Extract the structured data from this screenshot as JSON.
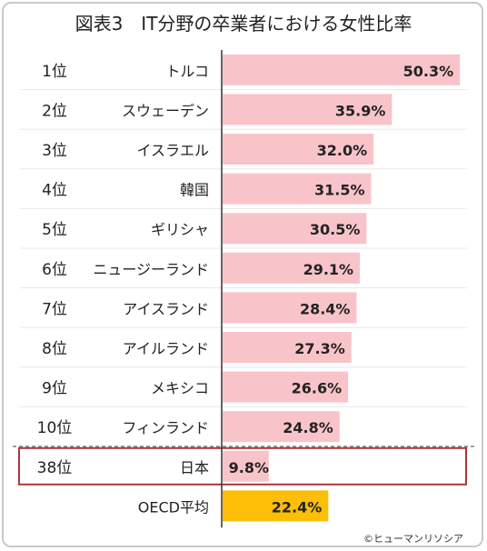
{
  "title": "図表3　IT分野の卒業者における女性比率",
  "credit": "©ヒューマンリソシア",
  "colors": {
    "bar": "#f8c4ca",
    "oecd_bar": "#fcbe06",
    "highlight_border": "#b0343b",
    "separator": "#e8e8e8",
    "axis": "#333333"
  },
  "chart_data": {
    "type": "bar",
    "orientation": "horizontal",
    "title": "図表3　IT分野の卒業者における女性比率",
    "xlim": [
      0,
      52
    ],
    "rows": [
      {
        "rank": "1位",
        "country": "トルコ",
        "value": 50.3,
        "label": "50.3%"
      },
      {
        "rank": "2位",
        "country": "スウェーデン",
        "value": 35.9,
        "label": "35.9%"
      },
      {
        "rank": "3位",
        "country": "イスラエル",
        "value": 32.0,
        "label": "32.0%"
      },
      {
        "rank": "4位",
        "country": "韓国",
        "value": 31.5,
        "label": "31.5%"
      },
      {
        "rank": "5位",
        "country": "ギリシャ",
        "value": 30.5,
        "label": "30.5%"
      },
      {
        "rank": "6位",
        "country": "ニュージーランド",
        "value": 29.1,
        "label": "29.1%"
      },
      {
        "rank": "7位",
        "country": "アイスランド",
        "value": 28.4,
        "label": "28.4%"
      },
      {
        "rank": "8位",
        "country": "アイルランド",
        "value": 27.3,
        "label": "27.3%"
      },
      {
        "rank": "9位",
        "country": "メキシコ",
        "value": 26.6,
        "label": "26.6%"
      },
      {
        "rank": "10位",
        "country": "フィンランド",
        "value": 24.8,
        "label": "24.8%"
      },
      {
        "rank": "38位",
        "country": "日本",
        "value": 9.8,
        "label": "9.8%",
        "highlight": true
      },
      {
        "rank": "",
        "country": "OECD平均",
        "value": 22.4,
        "label": "22.4%",
        "average": true
      }
    ]
  }
}
